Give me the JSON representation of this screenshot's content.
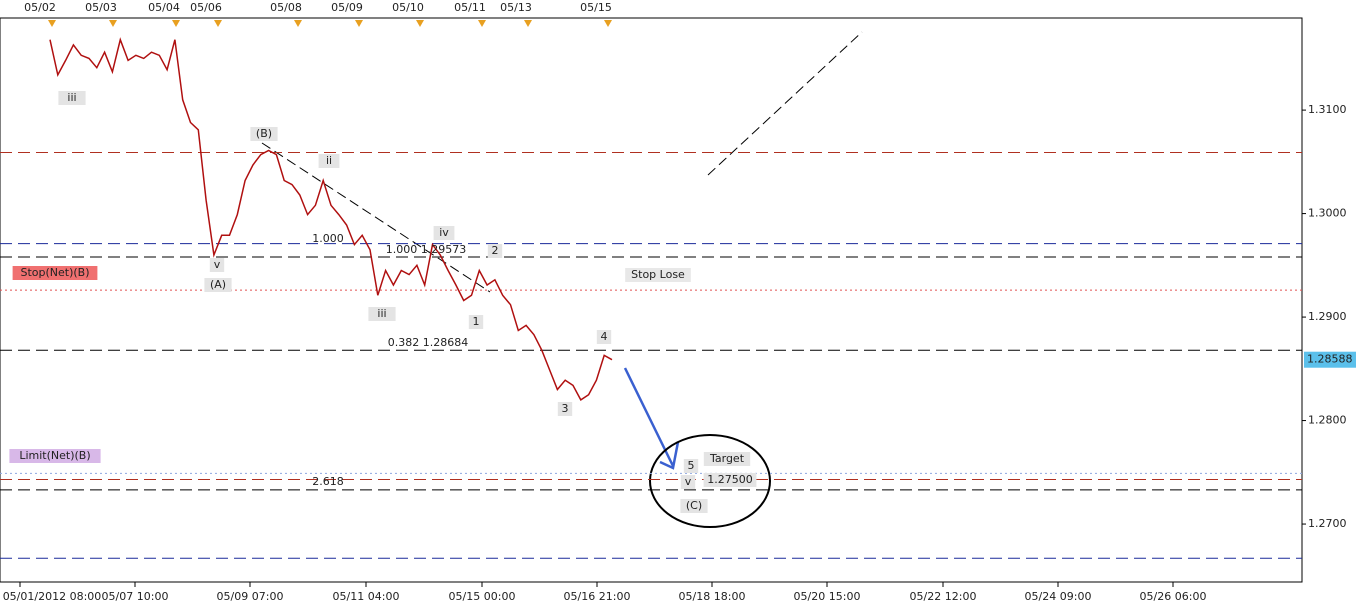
{
  "chart_data": {
    "type": "line",
    "ylim": [
      1.2644,
      1.3189
    ],
    "yticks": [
      {
        "value": 1.31,
        "label": "1.3100"
      },
      {
        "value": 1.3,
        "label": "1.3000"
      },
      {
        "value": 1.29,
        "label": "1.2900"
      },
      {
        "value": 1.28,
        "label": "1.2800"
      },
      {
        "value": 1.27,
        "label": "1.2700"
      }
    ],
    "xlabels": [
      "05/01/2012 08:00",
      "05/07 10:00",
      "05/09 07:00",
      "05/11 04:00",
      "05/15 00:00",
      "05/16 21:00",
      "05/18 18:00",
      "05/20 15:00",
      "05/22 12:00",
      "05/24 09:00",
      "05/26 06:00"
    ],
    "top_dates": [
      "05/02",
      "05/03",
      "05/04",
      "05/06",
      "05/08",
      "05/09",
      "05/10",
      "05/11",
      "05/13",
      "05/15"
    ],
    "series": [
      {
        "color": "#b01010",
        "values": [
          1.3168,
          1.3134,
          1.3148,
          1.3163,
          1.3153,
          1.315,
          1.3141,
          1.3156,
          1.3137,
          1.3168,
          1.3148,
          1.3153,
          1.315,
          1.3156,
          1.3153,
          1.3139,
          1.3168,
          1.311,
          1.3088,
          1.3081,
          1.3013,
          1.296,
          1.2979,
          1.2979,
          1.2999,
          1.3032,
          1.3047,
          1.3057,
          1.3061,
          1.3057,
          1.3032,
          1.3028,
          1.3018,
          1.2999,
          1.3008,
          1.3032,
          1.3008,
          1.2999,
          1.2989,
          1.297,
          1.2979,
          1.2965,
          1.2921,
          1.2945,
          1.2931,
          1.2945,
          1.2941,
          1.295,
          1.2931,
          1.297,
          1.296,
          1.2945,
          1.2931,
          1.2916,
          1.2921,
          1.2945,
          1.2931,
          1.2936,
          1.2921,
          1.2912,
          1.2887,
          1.2892,
          1.2883,
          1.2868,
          1.2849,
          1.283,
          1.2839,
          1.2834,
          1.282,
          1.2825,
          1.2839,
          1.2863,
          1.28588
        ]
      }
    ],
    "last_price": 1.28588,
    "levels": [
      {
        "value": 1.3059,
        "color": "#b03020",
        "dash": "12 6"
      },
      {
        "value": 1.2971,
        "color": "#1a2a9a",
        "dash": "12 6"
      },
      {
        "value": 1.2958,
        "color": "#000000",
        "dash": "12 6"
      },
      {
        "value": 1.2926,
        "color": "#e05050",
        "dash": "2 3"
      },
      {
        "value": 1.2868,
        "color": "#000000",
        "dash": "12 6"
      },
      {
        "value": 1.2749,
        "color": "#8fa8e0",
        "dash": "2 3"
      },
      {
        "value": 1.2743,
        "color": "#b03020",
        "dash": "12 6"
      },
      {
        "value": 1.2733,
        "color": "#000000",
        "dash": "12 6"
      },
      {
        "value": 1.2667,
        "color": "#1a2a9a",
        "dash": "12 6"
      }
    ],
    "annotations": [
      "iii",
      "(B)",
      "ii",
      "v",
      "(A)",
      "1.000",
      "1.000 1.29573",
      "iv",
      "2",
      "iii",
      "1",
      "0.382 1.28684",
      "4",
      "3",
      "5",
      "v",
      "(C)",
      "Target",
      "1.27500",
      "2.618",
      "Stop Lose",
      "Stop(Net)(B)",
      "Limit(Net)(B)"
    ]
  }
}
